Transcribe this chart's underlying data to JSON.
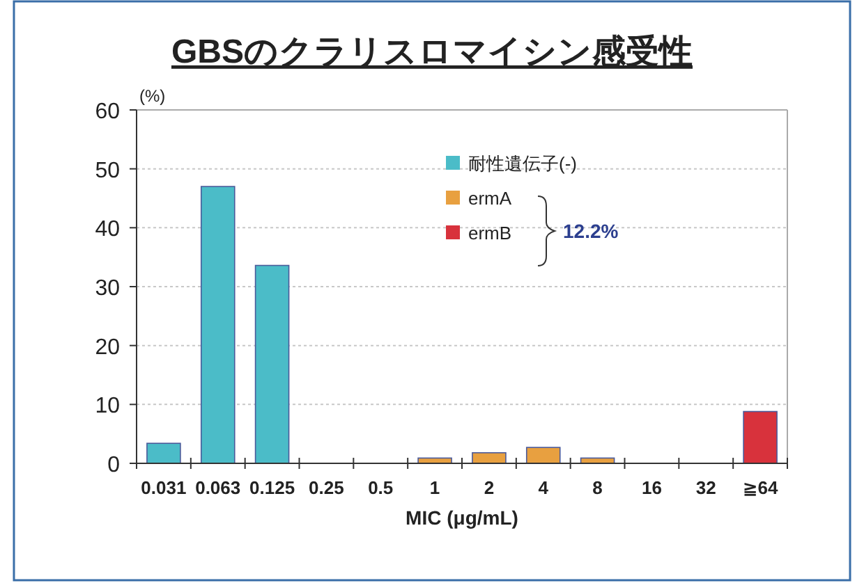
{
  "chart_data": {
    "type": "bar",
    "title": "GBSのクラリスロマイシン感受性",
    "ylabel": "(%)",
    "xlabel": "MIC (μg/mL)",
    "categories": [
      "0.031",
      "0.063",
      "0.125",
      "0.25",
      "0.5",
      "1",
      "2",
      "4",
      "8",
      "16",
      "32",
      "≧64"
    ],
    "series": [
      {
        "name": "耐性遺伝子(-)",
        "color": "#4bbcc8",
        "values": [
          3.4,
          47,
          33.6,
          null,
          null,
          null,
          null,
          null,
          null,
          null,
          null,
          null
        ]
      },
      {
        "name": "ermA",
        "color": "#e8a040",
        "values": [
          null,
          null,
          null,
          null,
          null,
          0.9,
          1.8,
          2.7,
          0.9,
          null,
          null,
          null
        ]
      },
      {
        "name": "ermB",
        "color": "#d8323c",
        "values": [
          null,
          null,
          null,
          null,
          null,
          null,
          null,
          null,
          null,
          null,
          null,
          8.8
        ]
      }
    ],
    "ylim": [
      0,
      60
    ],
    "yticks": [
      0,
      10,
      20,
      30,
      40,
      50,
      60
    ],
    "grid": "y",
    "legend": "top right",
    "annotations": [
      "12.2%"
    ]
  }
}
